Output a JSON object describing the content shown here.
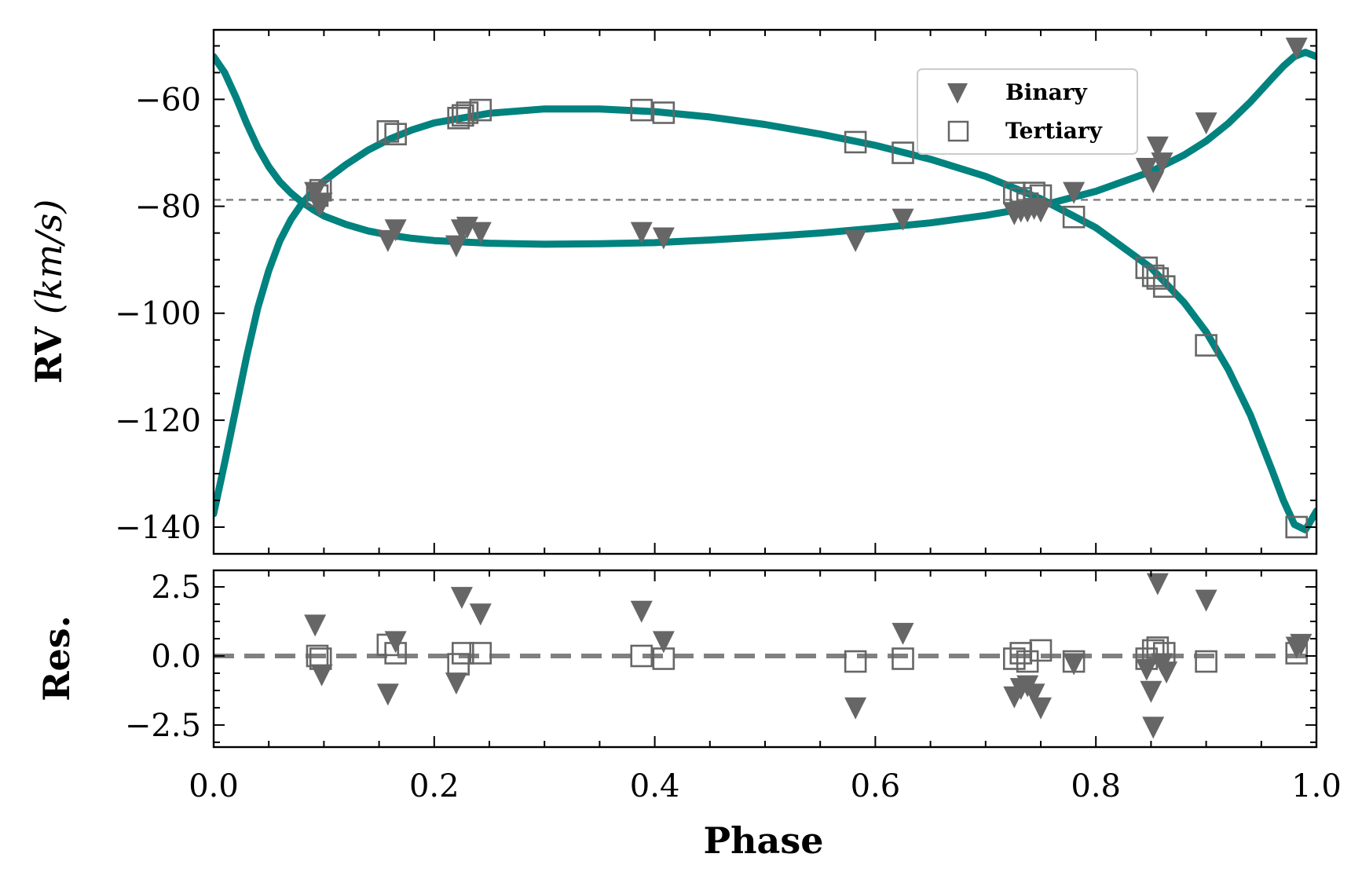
{
  "chart_data": {
    "type": "scatter",
    "colors": {
      "model": "#00827f",
      "points": "#666666",
      "reference": "#808080"
    },
    "legend": {
      "placement": "top-right",
      "entries": [
        {
          "label": "Binary",
          "marker": "triangle-down"
        },
        {
          "label": "Tertiary",
          "marker": "square-open"
        }
      ]
    },
    "xlabel": "Phase",
    "xlim": [
      0.0,
      1.0
    ],
    "xticks": [
      "0.0",
      "0.2",
      "0.4",
      "0.6",
      "0.8",
      "1.0"
    ],
    "panels": [
      {
        "id": "rv",
        "ylabel_main": "RV",
        "ylabel_unit": "(km/s)",
        "ylim": [
          -145,
          -47
        ],
        "yticks": [
          "−60",
          "−80",
          "−100",
          "−120",
          "−140"
        ],
        "reference_line": -78.8,
        "series": [
          {
            "name": "Binary",
            "marker": "triangle-down",
            "points": [
              [
                0.092,
                -77.5
              ],
              [
                0.096,
                -80.0
              ],
              [
                0.098,
                -79.5
              ],
              [
                0.158,
                -86.5
              ],
              [
                0.165,
                -84.5
              ],
              [
                0.22,
                -87.5
              ],
              [
                0.225,
                -84.5
              ],
              [
                0.23,
                -84.0
              ],
              [
                0.242,
                -85.0
              ],
              [
                0.388,
                -85.0
              ],
              [
                0.408,
                -86.0
              ],
              [
                0.582,
                -86.5
              ],
              [
                0.625,
                -82.5
              ],
              [
                0.726,
                -81.5
              ],
              [
                0.732,
                -81.0
              ],
              [
                0.738,
                -81.0
              ],
              [
                0.744,
                -80.5
              ],
              [
                0.75,
                -81.0
              ],
              [
                0.78,
                -77.5
              ],
              [
                0.846,
                -73.0
              ],
              [
                0.852,
                -75.5
              ],
              [
                0.856,
                -69.0
              ],
              [
                0.86,
                -72.0
              ],
              [
                0.9,
                -64.5
              ],
              [
                0.982,
                -50.5
              ]
            ]
          },
          {
            "name": "Tertiary",
            "marker": "square-open",
            "points": [
              [
                0.094,
                -78.0
              ],
              [
                0.097,
                -77.0
              ],
              [
                0.158,
                -66.0
              ],
              [
                0.165,
                -66.5
              ],
              [
                0.222,
                -63.5
              ],
              [
                0.226,
                -63.0
              ],
              [
                0.23,
                -62.5
              ],
              [
                0.242,
                -62.0
              ],
              [
                0.388,
                -62.0
              ],
              [
                0.408,
                -62.5
              ],
              [
                0.582,
                -68.0
              ],
              [
                0.625,
                -70.0
              ],
              [
                0.726,
                -77.5
              ],
              [
                0.732,
                -78.5
              ],
              [
                0.738,
                -79.5
              ],
              [
                0.744,
                -77.5
              ],
              [
                0.75,
                -78.0
              ],
              [
                0.78,
                -82.0
              ],
              [
                0.846,
                -91.5
              ],
              [
                0.852,
                -93.0
              ],
              [
                0.856,
                -93.5
              ],
              [
                0.862,
                -95.0
              ],
              [
                0.9,
                -106.0
              ],
              [
                0.982,
                -140.0
              ]
            ]
          }
        ],
        "models": [
          {
            "for": "Binary",
            "points": [
              [
                0.0,
                -52.0
              ],
              [
                0.01,
                -55.0
              ],
              [
                0.02,
                -59.5
              ],
              [
                0.03,
                -64.5
              ],
              [
                0.04,
                -69.0
              ],
              [
                0.05,
                -72.6
              ],
              [
                0.06,
                -75.4
              ],
              [
                0.07,
                -77.5
              ],
              [
                0.08,
                -79.2
              ],
              [
                0.09,
                -80.6
              ],
              [
                0.1,
                -81.8
              ],
              [
                0.12,
                -83.4
              ],
              [
                0.14,
                -84.6
              ],
              [
                0.16,
                -85.4
              ],
              [
                0.18,
                -86.0
              ],
              [
                0.2,
                -86.4
              ],
              [
                0.25,
                -86.9
              ],
              [
                0.3,
                -87.1
              ],
              [
                0.35,
                -87.0
              ],
              [
                0.4,
                -86.8
              ],
              [
                0.45,
                -86.3
              ],
              [
                0.5,
                -85.7
              ],
              [
                0.55,
                -85.0
              ],
              [
                0.6,
                -84.1
              ],
              [
                0.65,
                -83.1
              ],
              [
                0.7,
                -81.7
              ],
              [
                0.75,
                -79.9
              ],
              [
                0.8,
                -77.2
              ],
              [
                0.85,
                -73.5
              ],
              [
                0.88,
                -70.4
              ],
              [
                0.9,
                -67.8
              ],
              [
                0.92,
                -64.5
              ],
              [
                0.94,
                -60.5
              ],
              [
                0.96,
                -56.0
              ],
              [
                0.97,
                -53.8
              ],
              [
                0.98,
                -52.0
              ],
              [
                0.99,
                -51.2
              ],
              [
                1.0,
                -52.0
              ]
            ]
          },
          {
            "for": "Tertiary",
            "points": [
              [
                0.0,
                -137.5
              ],
              [
                0.01,
                -128.0
              ],
              [
                0.02,
                -118.0
              ],
              [
                0.03,
                -108.0
              ],
              [
                0.04,
                -99.0
              ],
              [
                0.05,
                -92.0
              ],
              [
                0.06,
                -86.5
              ],
              [
                0.07,
                -82.5
              ],
              [
                0.08,
                -79.5
              ],
              [
                0.09,
                -77.2
              ],
              [
                0.1,
                -75.3
              ],
              [
                0.12,
                -72.2
              ],
              [
                0.14,
                -69.5
              ],
              [
                0.16,
                -67.4
              ],
              [
                0.18,
                -65.7
              ],
              [
                0.2,
                -64.4
              ],
              [
                0.25,
                -62.6
              ],
              [
                0.3,
                -61.8
              ],
              [
                0.35,
                -61.8
              ],
              [
                0.4,
                -62.3
              ],
              [
                0.45,
                -63.3
              ],
              [
                0.5,
                -64.7
              ],
              [
                0.55,
                -66.5
              ],
              [
                0.6,
                -68.6
              ],
              [
                0.65,
                -71.2
              ],
              [
                0.7,
                -74.4
              ],
              [
                0.75,
                -78.6
              ],
              [
                0.8,
                -84.0
              ],
              [
                0.85,
                -91.5
              ],
              [
                0.88,
                -98.0
              ],
              [
                0.9,
                -103.5
              ],
              [
                0.92,
                -110.5
              ],
              [
                0.94,
                -119.0
              ],
              [
                0.96,
                -129.5
              ],
              [
                0.97,
                -135.0
              ],
              [
                0.98,
                -139.5
              ],
              [
                0.99,
                -140.5
              ],
              [
                1.0,
                -137.0
              ]
            ]
          }
        ]
      },
      {
        "id": "residuals",
        "ylabel_main": "Res.",
        "ylim": [
          -3.3,
          3.1
        ],
        "yticks": [
          "2.5",
          "0.0",
          "−2.5"
        ],
        "reference_line": 0.0,
        "series": [
          {
            "name": "Binary",
            "marker": "triangle-down",
            "points": [
              [
                0.092,
                1.1
              ],
              [
                0.098,
                -0.7
              ],
              [
                0.158,
                -1.4
              ],
              [
                0.165,
                0.5
              ],
              [
                0.22,
                -1.0
              ],
              [
                0.225,
                2.1
              ],
              [
                0.242,
                1.5
              ],
              [
                0.388,
                1.6
              ],
              [
                0.408,
                0.5
              ],
              [
                0.582,
                -1.9
              ],
              [
                0.625,
                0.8
              ],
              [
                0.726,
                -1.5
              ],
              [
                0.732,
                -1.2
              ],
              [
                0.738,
                -1.1
              ],
              [
                0.744,
                -1.4
              ],
              [
                0.75,
                -1.9
              ],
              [
                0.78,
                -0.3
              ],
              [
                0.846,
                -0.5
              ],
              [
                0.85,
                -1.3
              ],
              [
                0.852,
                -2.6
              ],
              [
                0.856,
                2.6
              ],
              [
                0.86,
                -0.3
              ],
              [
                0.864,
                -0.6
              ],
              [
                0.9,
                2.0
              ],
              [
                0.982,
                0.3
              ],
              [
                0.986,
                0.4
              ]
            ]
          },
          {
            "name": "Tertiary",
            "marker": "square-open",
            "points": [
              [
                0.094,
                0.0
              ],
              [
                0.097,
                -0.1
              ],
              [
                0.158,
                0.4
              ],
              [
                0.165,
                0.1
              ],
              [
                0.222,
                -0.3
              ],
              [
                0.226,
                0.1
              ],
              [
                0.242,
                0.1
              ],
              [
                0.388,
                0.0
              ],
              [
                0.408,
                -0.1
              ],
              [
                0.582,
                -0.2
              ],
              [
                0.625,
                -0.1
              ],
              [
                0.726,
                -0.1
              ],
              [
                0.732,
                0.1
              ],
              [
                0.738,
                -0.2
              ],
              [
                0.75,
                0.2
              ],
              [
                0.78,
                -0.2
              ],
              [
                0.846,
                -0.1
              ],
              [
                0.852,
                0.2
              ],
              [
                0.856,
                0.3
              ],
              [
                0.862,
                0.1
              ],
              [
                0.9,
                -0.2
              ],
              [
                0.982,
                0.1
              ]
            ]
          }
        ]
      }
    ]
  }
}
